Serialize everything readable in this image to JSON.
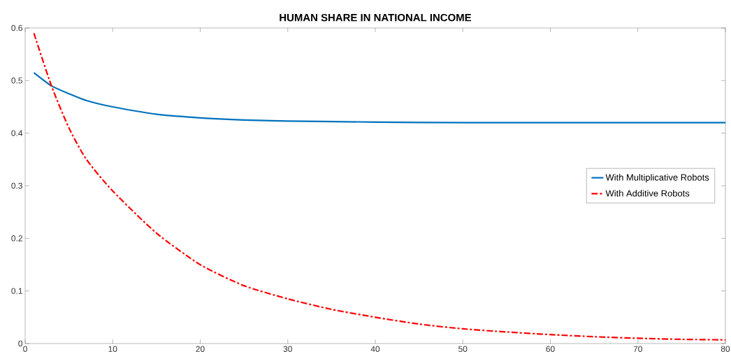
{
  "chart_data": {
    "type": "line",
    "title": "HUMAN SHARE IN NATIONAL INCOME",
    "xlim": [
      0,
      80
    ],
    "ylim": [
      0,
      0.6
    ],
    "xticks": [
      0,
      10,
      20,
      30,
      40,
      50,
      60,
      70,
      80
    ],
    "yticks": [
      0,
      0.1,
      0.2,
      0.3,
      0.4,
      0.5,
      0.6
    ],
    "legend": "right",
    "grid": false,
    "series": [
      {
        "name": "With Multiplicative Robots",
        "color": "#0072bd",
        "line_style": "solid",
        "x": [
          1,
          3,
          5,
          7,
          10,
          15,
          20,
          25,
          30,
          40,
          50,
          60,
          70,
          80
        ],
        "values": [
          0.515,
          0.49,
          0.475,
          0.462,
          0.45,
          0.436,
          0.429,
          0.425,
          0.423,
          0.421,
          0.42,
          0.42,
          0.42,
          0.42
        ]
      },
      {
        "name": "With Additive Robots",
        "color": "#ff0000",
        "line_style": "dashed",
        "x": [
          1,
          3,
          5,
          7,
          10,
          15,
          20,
          25,
          30,
          35,
          40,
          45,
          50,
          55,
          60,
          65,
          70,
          75,
          80
        ],
        "values": [
          0.59,
          0.49,
          0.41,
          0.35,
          0.29,
          0.21,
          0.15,
          0.11,
          0.085,
          0.065,
          0.05,
          0.037,
          0.028,
          0.022,
          0.017,
          0.013,
          0.01,
          0.008,
          0.007
        ]
      }
    ]
  }
}
